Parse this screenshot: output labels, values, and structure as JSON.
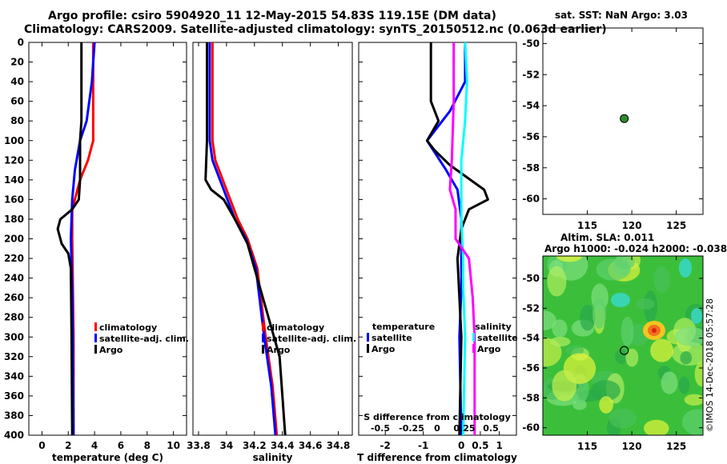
{
  "figure": {
    "title_line1": "Argo profile: csiro 5904920_11 12-May-2015 54.83S 119.15E (DM data)",
    "title_line2": "Climatology: CARS2009. Satellite-adjusted climatology: synTS_20150512.nc (0.063d earlier)",
    "credit": "©IMOS 14-Dec-2018 05:57:28"
  },
  "colors": {
    "climatology": "#ff0000",
    "satellite": "#0000ff",
    "argo": "#000000",
    "sal_sat": "#00ffff",
    "sal_argo": "#ff00ff",
    "green": "#2e8b2e"
  },
  "chart_data": [
    {
      "type": "line",
      "name": "temperature",
      "xlabel": "temperature (deg C)",
      "ylabel": "",
      "xlim": [
        -1,
        11
      ],
      "ylim": [
        400,
        0
      ],
      "xticks": [
        0,
        2,
        4,
        6,
        8,
        10
      ],
      "yticks": [
        0,
        20,
        40,
        60,
        80,
        100,
        120,
        140,
        160,
        180,
        200,
        220,
        240,
        260,
        280,
        300,
        320,
        340,
        360,
        380,
        400
      ],
      "legend": [
        "climatology",
        "satellite-adj. clim.",
        "Argo"
      ],
      "series": [
        {
          "name": "climatology",
          "color": "#ff0000",
          "points": [
            [
              3.9,
              0
            ],
            [
              3.9,
              40
            ],
            [
              3.9,
              80
            ],
            [
              3.9,
              100
            ],
            [
              3.5,
              120
            ],
            [
              2.9,
              140
            ],
            [
              2.3,
              170
            ],
            [
              2.3,
              200
            ],
            [
              2.4,
              300
            ],
            [
              2.4,
              400
            ]
          ]
        },
        {
          "name": "satellite-adj. clim.",
          "color": "#0000ff",
          "points": [
            [
              4.0,
              0
            ],
            [
              3.8,
              40
            ],
            [
              3.4,
              80
            ],
            [
              2.9,
              100
            ],
            [
              2.5,
              130
            ],
            [
              2.3,
              160
            ],
            [
              2.2,
              200
            ],
            [
              2.3,
              250
            ],
            [
              2.35,
              300
            ],
            [
              2.4,
              400
            ]
          ]
        },
        {
          "name": "Argo",
          "color": "#000000",
          "points": [
            [
              3.0,
              0
            ],
            [
              3.0,
              40
            ],
            [
              3.0,
              80
            ],
            [
              2.9,
              100
            ],
            [
              2.9,
              140
            ],
            [
              2.8,
              160
            ],
            [
              2.3,
              170
            ],
            [
              1.4,
              180
            ],
            [
              1.2,
              190
            ],
            [
              1.5,
              205
            ],
            [
              2.0,
              215
            ],
            [
              2.2,
              230
            ],
            [
              2.25,
              300
            ],
            [
              2.3,
              400
            ]
          ]
        }
      ]
    },
    {
      "type": "line",
      "name": "salinity",
      "xlabel": "salinity",
      "ylabel": "",
      "xlim": [
        33.76,
        34.9
      ],
      "ylim": [
        400,
        0
      ],
      "xticks": [
        33.8,
        34,
        34.2,
        34.4,
        34.6,
        34.8
      ],
      "xticklabels": [
        "33.8",
        "34",
        "34.2",
        "34.4",
        "34.6",
        "34.8"
      ],
      "legend": [
        "climatology",
        "satellite-adj. clim.",
        "Argo"
      ],
      "series": [
        {
          "name": "climatology",
          "color": "#ff0000",
          "points": [
            [
              33.9,
              0
            ],
            [
              33.9,
              100
            ],
            [
              33.92,
              120
            ],
            [
              34.0,
              150
            ],
            [
              34.08,
              180
            ],
            [
              34.15,
              200
            ],
            [
              34.22,
              230
            ],
            [
              34.28,
              300
            ],
            [
              34.33,
              350
            ],
            [
              34.36,
              400
            ]
          ]
        },
        {
          "name": "satellite-adj. clim.",
          "color": "#0000ff",
          "points": [
            [
              33.88,
              0
            ],
            [
              33.88,
              100
            ],
            [
              33.9,
              120
            ],
            [
              33.98,
              150
            ],
            [
              34.06,
              180
            ],
            [
              34.14,
              200
            ],
            [
              34.21,
              230
            ],
            [
              34.27,
              300
            ],
            [
              34.32,
              350
            ],
            [
              34.35,
              400
            ]
          ]
        },
        {
          "name": "Argo",
          "color": "#000000",
          "points": [
            [
              33.86,
              0
            ],
            [
              33.86,
              100
            ],
            [
              33.85,
              140
            ],
            [
              33.89,
              150
            ],
            [
              33.98,
              160
            ],
            [
              34.06,
              180
            ],
            [
              34.15,
              205
            ],
            [
              34.2,
              230
            ],
            [
              34.24,
              250
            ],
            [
              34.3,
              280
            ],
            [
              34.38,
              320
            ],
            [
              34.4,
              360
            ],
            [
              34.42,
              400
            ]
          ]
        }
      ]
    },
    {
      "type": "line",
      "name": "difference",
      "xlabel": "T difference from climatology",
      "top_xlabel": "S difference from climatology",
      "xlim": [
        -2.7,
        1.45
      ],
      "ylim": [
        400,
        0
      ],
      "xticks": [
        -2,
        -1,
        0,
        0.5,
        1
      ],
      "xticklabels": [
        "-2",
        "-1",
        "0",
        "0.5",
        "1"
      ],
      "top_ticklabels": [
        "-0.5",
        "-0.25",
        "0",
        "0.25",
        "0.5"
      ],
      "legend_left_title": "temperature",
      "legend_right_title": "salinity",
      "legend_left": [
        "satellite",
        "Argo"
      ],
      "legend_right": [
        "satellite",
        "Argo"
      ],
      "series": [
        {
          "name": "T satellite",
          "color": "#0000ff",
          "points": [
            [
              0.1,
              0
            ],
            [
              0.1,
              40
            ],
            [
              -0.3,
              70
            ],
            [
              -0.9,
              100
            ],
            [
              -0.4,
              130
            ],
            [
              -0.1,
              150
            ],
            [
              0.0,
              180
            ],
            [
              0.0,
              250
            ],
            [
              -0.05,
              300
            ],
            [
              0.0,
              400
            ]
          ]
        },
        {
          "name": "T Argo",
          "color": "#000000",
          "points": [
            [
              -0.8,
              0
            ],
            [
              -0.8,
              60
            ],
            [
              -0.6,
              80
            ],
            [
              -0.9,
              100
            ],
            [
              -0.7,
              110
            ],
            [
              -0.3,
              125
            ],
            [
              0.6,
              150
            ],
            [
              0.7,
              160
            ],
            [
              0.2,
              170
            ],
            [
              0.0,
              190
            ],
            [
              -0.1,
              220
            ],
            [
              0.0,
              300
            ],
            [
              -0.05,
              400
            ]
          ]
        },
        {
          "name": "S satellite",
          "color": "#00ffff",
          "points": [
            [
              0.1,
              0
            ],
            [
              0.15,
              40
            ],
            [
              0.1,
              80
            ],
            [
              0.0,
              120
            ],
            [
              0.0,
              180
            ],
            [
              0.05,
              220
            ],
            [
              0.05,
              250
            ],
            [
              0.1,
              300
            ],
            [
              0.05,
              400
            ]
          ]
        },
        {
          "name": "S Argo",
          "color": "#ff00ff",
          "points": [
            [
              -0.2,
              0
            ],
            [
              -0.2,
              60
            ],
            [
              -0.25,
              120
            ],
            [
              -0.3,
              150
            ],
            [
              -0.15,
              170
            ],
            [
              -0.15,
              200
            ],
            [
              0.2,
              220
            ],
            [
              0.3,
              260
            ],
            [
              0.35,
              300
            ],
            [
              0.35,
              400
            ]
          ]
        }
      ]
    },
    {
      "type": "scatter",
      "name": "sst-map",
      "title": "sat. SST: NaN Argo: 3.03",
      "xlim": [
        110,
        128
      ],
      "ylim": [
        -61,
        -49
      ],
      "xticks": [
        115,
        120,
        125
      ],
      "yticks": [
        -50,
        -52,
        -54,
        -56,
        -58,
        -60
      ],
      "points": [
        [
          119.15,
          -54.83
        ]
      ]
    },
    {
      "type": "heatmap",
      "name": "sla-map",
      "title_line1": "Altim. SLA: 0.011",
      "title_line2": "Argo h1000: -0.024 h2000: -0.038",
      "xlim": [
        110,
        128
      ],
      "ylim": [
        -60.5,
        -48.5
      ],
      "xticks": [
        115,
        120,
        125
      ],
      "yticks": [
        -50,
        -52,
        -54,
        -56,
        -58,
        -60
      ],
      "points": [
        [
          119.15,
          -54.83
        ]
      ]
    }
  ]
}
